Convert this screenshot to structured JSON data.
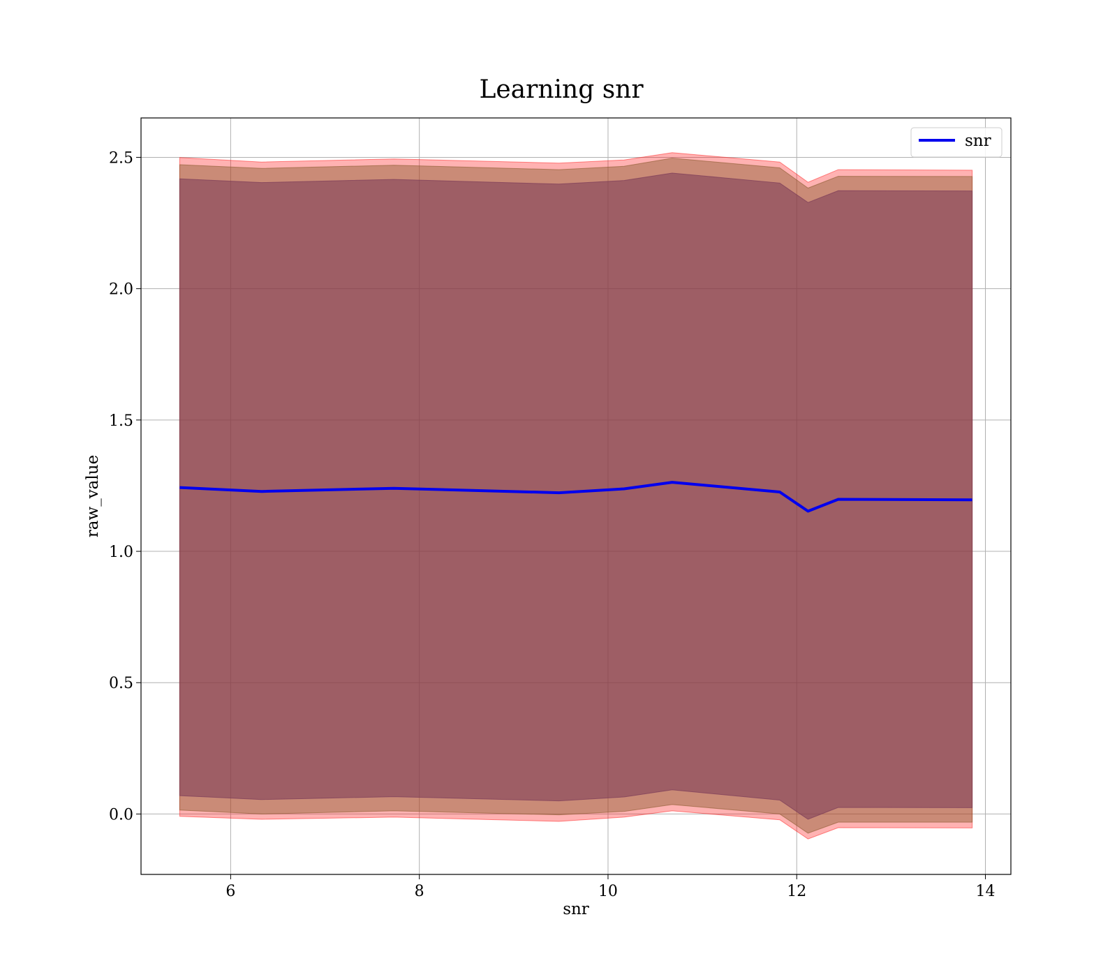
{
  "chart_data": {
    "type": "line",
    "title": "Learning snr",
    "xlabel": "snr",
    "ylabel": "raw_value",
    "xlim": [
      5.05,
      14.27
    ],
    "ylim": [
      -0.23,
      2.65
    ],
    "xticks": [
      6,
      8,
      10,
      12,
      14
    ],
    "yticks": [
      0.0,
      0.5,
      1.0,
      1.5,
      2.0,
      2.5
    ],
    "xtick_labels": [
      "6",
      "8",
      "10",
      "12",
      "14"
    ],
    "ytick_labels": [
      "0.0",
      "0.5",
      "1.0",
      "1.5",
      "2.0",
      "2.5"
    ],
    "grid": true,
    "legend_position": "top-right",
    "x": [
      5.46,
      6.33,
      7.73,
      9.48,
      10.17,
      10.68,
      11.82,
      12.12,
      12.44,
      13.86
    ],
    "series": [
      {
        "name": "snr",
        "color": "#0000ee",
        "values": [
          1.243,
          1.228,
          1.24,
          1.223,
          1.238,
          1.263,
          1.226,
          1.153,
          1.198,
          1.196
        ]
      }
    ],
    "bands": [
      {
        "color": "#ff0000",
        "opacity": 0.3,
        "upper": [
          2.499,
          2.482,
          2.494,
          2.478,
          2.49,
          2.518,
          2.482,
          2.405,
          2.453,
          2.451
        ],
        "lower": [
          -0.009,
          -0.02,
          -0.012,
          -0.028,
          -0.012,
          0.012,
          -0.022,
          -0.095,
          -0.052,
          -0.053
        ]
      },
      {
        "color": "#8a5a2e",
        "opacity": 0.45,
        "upper": [
          2.472,
          2.458,
          2.47,
          2.453,
          2.466,
          2.497,
          2.46,
          2.383,
          2.428,
          2.427
        ],
        "lower": [
          0.015,
          0.0,
          0.012,
          -0.003,
          0.01,
          0.036,
          0.0,
          -0.073,
          -0.031,
          -0.031
        ]
      },
      {
        "color": "#7a3b58",
        "opacity": 0.55,
        "upper": [
          2.418,
          2.404,
          2.416,
          2.398,
          2.412,
          2.44,
          2.402,
          2.328,
          2.373,
          2.372
        ],
        "lower": [
          0.07,
          0.055,
          0.066,
          0.05,
          0.065,
          0.092,
          0.053,
          -0.02,
          0.025,
          0.024
        ]
      }
    ]
  }
}
